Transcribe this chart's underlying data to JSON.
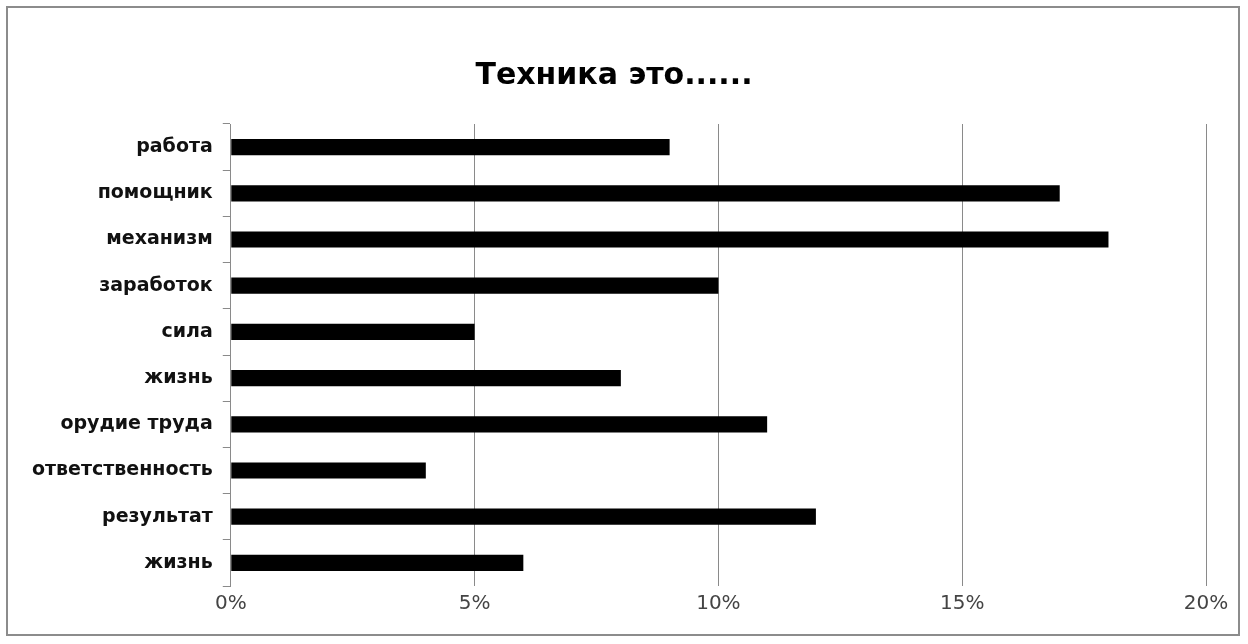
{
  "chart_data": {
    "type": "bar",
    "orientation": "horizontal",
    "title": "Техника это......",
    "categories": [
      "работа",
      "помощник",
      "механизм",
      "заработок",
      "сила",
      "жизнь",
      "орудие труда",
      "ответственность",
      "результат",
      "жизнь"
    ],
    "values": [
      9,
      17,
      18,
      10,
      5,
      8,
      11,
      4,
      12,
      6
    ],
    "color": "#000000",
    "xlim": [
      0,
      20
    ],
    "xticks": [
      {
        "value": 0,
        "label": "0%"
      },
      {
        "value": 5,
        "label": "5%"
      },
      {
        "value": 10,
        "label": "10%"
      },
      {
        "value": 15,
        "label": "15%"
      },
      {
        "value": 20,
        "label": "20%"
      }
    ],
    "grid": "x",
    "legend": false
  }
}
